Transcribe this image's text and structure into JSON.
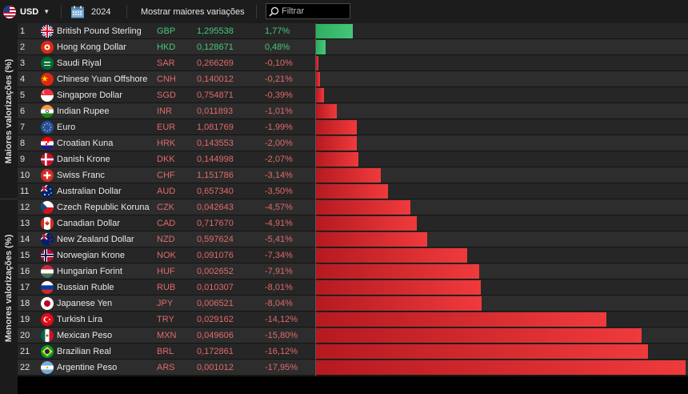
{
  "toolbar": {
    "currency": "USD",
    "year": "2024",
    "toggle_label": "Mostrar maiores variações",
    "filter_placeholder": "Filtrar"
  },
  "sections": {
    "top_label": "Maiores valorizações (%)",
    "bottom_label": "Menores valorizações (%)"
  },
  "colors": {
    "positive": "#49c77a",
    "negative": "#e36a6a",
    "bar_positive": "#44c678",
    "bar_negative": "#f03a3c"
  },
  "rows": [
    {
      "rank": "1",
      "flag": "GB",
      "name": "British Pound Sterling",
      "code": "GBP",
      "price": "1,295538",
      "change": "1,77%",
      "pct": 1.77
    },
    {
      "rank": "2",
      "flag": "HK",
      "name": "Hong Kong Dollar",
      "code": "HKD",
      "price": "0,128671",
      "change": "0,48%",
      "pct": 0.48
    },
    {
      "rank": "3",
      "flag": "SA",
      "name": "Saudi Riyal",
      "code": "SAR",
      "price": "0,266269",
      "change": "-0,10%",
      "pct": -0.1
    },
    {
      "rank": "4",
      "flag": "CN",
      "name": "Chinese Yuan Offshore",
      "code": "CNH",
      "price": "0,140012",
      "change": "-0,21%",
      "pct": -0.21
    },
    {
      "rank": "5",
      "flag": "SG",
      "name": "Singapore Dollar",
      "code": "SGD",
      "price": "0,754871",
      "change": "-0,39%",
      "pct": -0.39
    },
    {
      "rank": "6",
      "flag": "IN",
      "name": "Indian Rupee",
      "code": "INR",
      "price": "0,011893",
      "change": "-1,01%",
      "pct": -1.01
    },
    {
      "rank": "7",
      "flag": "EU",
      "name": "Euro",
      "code": "EUR",
      "price": "1,081769",
      "change": "-1,99%",
      "pct": -1.99
    },
    {
      "rank": "8",
      "flag": "HR",
      "name": "Croatian Kuna",
      "code": "HRK",
      "price": "0,143553",
      "change": "-2,00%",
      "pct": -2.0
    },
    {
      "rank": "9",
      "flag": "DK",
      "name": "Danish Krone",
      "code": "DKK",
      "price": "0,144998",
      "change": "-2,07%",
      "pct": -2.07
    },
    {
      "rank": "10",
      "flag": "CH",
      "name": "Swiss Franc",
      "code": "CHF",
      "price": "1,151786",
      "change": "-3,14%",
      "pct": -3.14
    },
    {
      "rank": "11",
      "flag": "AU",
      "name": "Australian Dollar",
      "code": "AUD",
      "price": "0,657340",
      "change": "-3,50%",
      "pct": -3.5
    },
    {
      "rank": "12",
      "flag": "CZ",
      "name": "Czech Republic Koruna",
      "code": "CZK",
      "price": "0,042643",
      "change": "-4,57%",
      "pct": -4.57
    },
    {
      "rank": "13",
      "flag": "CA",
      "name": "Canadian Dollar",
      "code": "CAD",
      "price": "0,717670",
      "change": "-4,91%",
      "pct": -4.91
    },
    {
      "rank": "14",
      "flag": "NZ",
      "name": "New Zealand Dollar",
      "code": "NZD",
      "price": "0,597624",
      "change": "-5,41%",
      "pct": -5.41
    },
    {
      "rank": "15",
      "flag": "NO",
      "name": "Norwegian Krone",
      "code": "NOK",
      "price": "0,091076",
      "change": "-7,34%",
      "pct": -7.34
    },
    {
      "rank": "16",
      "flag": "HU",
      "name": "Hungarian Forint",
      "code": "HUF",
      "price": "0,002652",
      "change": "-7,91%",
      "pct": -7.91
    },
    {
      "rank": "17",
      "flag": "RU",
      "name": "Russian Ruble",
      "code": "RUB",
      "price": "0,010307",
      "change": "-8,01%",
      "pct": -8.01
    },
    {
      "rank": "18",
      "flag": "JP",
      "name": "Japanese Yen",
      "code": "JPY",
      "price": "0,006521",
      "change": "-8,04%",
      "pct": -8.04
    },
    {
      "rank": "19",
      "flag": "TR",
      "name": "Turkish Lira",
      "code": "TRY",
      "price": "0,029162",
      "change": "-14,12%",
      "pct": -14.12
    },
    {
      "rank": "20",
      "flag": "MX",
      "name": "Mexican Peso",
      "code": "MXN",
      "price": "0,049606",
      "change": "-15,80%",
      "pct": -15.8
    },
    {
      "rank": "21",
      "flag": "BR",
      "name": "Brazilian Real",
      "code": "BRL",
      "price": "0,172861",
      "change": "-16,12%",
      "pct": -16.12
    },
    {
      "rank": "22",
      "flag": "AR",
      "name": "Argentine Peso",
      "code": "ARS",
      "price": "0,001012",
      "change": "-17,95%",
      "pct": -17.95
    }
  ]
}
